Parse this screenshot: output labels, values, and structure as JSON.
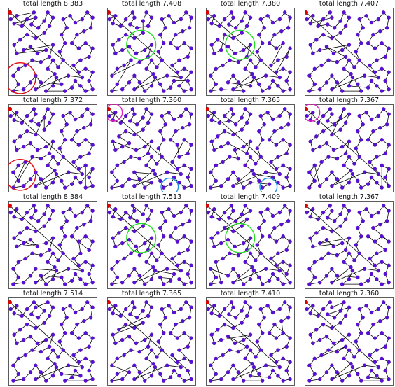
{
  "figure": {
    "colors": {
      "node": "#5a0fd6",
      "node_edge": "#3d0aa0",
      "start_node": "#e00000",
      "path": "#000000",
      "frame": "#333333",
      "circle_red": "#e01010",
      "circle_green": "#22dd22",
      "circle_magenta": "#e020c0",
      "circle_cyan": "#1e90e0"
    }
  },
  "chart_data": {
    "type": "scatter",
    "description_ids": [
      "route-plots"
    ],
    "xlim": [
      0,
      1
    ],
    "ylim": [
      0,
      1
    ],
    "grid": false,
    "panels": [
      {
        "row": 0,
        "col": 0,
        "title": "total length 8.383",
        "value": 8.383,
        "circles": [
          {
            "color": "circle_red",
            "cx": 0.12,
            "cy": 0.19,
            "r": 0.18
          }
        ]
      },
      {
        "row": 0,
        "col": 1,
        "title": "total length 7.408",
        "value": 7.408,
        "circles": [
          {
            "color": "circle_green",
            "cx": 0.38,
            "cy": 0.58,
            "r": 0.17
          }
        ]
      },
      {
        "row": 0,
        "col": 2,
        "title": "total length 7.380",
        "value": 7.38,
        "circles": [
          {
            "color": "circle_green",
            "cx": 0.38,
            "cy": 0.58,
            "r": 0.17
          }
        ]
      },
      {
        "row": 0,
        "col": 3,
        "title": "total length 7.407",
        "value": 7.407,
        "circles": []
      },
      {
        "row": 1,
        "col": 0,
        "title": "total length 7.372",
        "value": 7.372,
        "circles": [
          {
            "color": "circle_red",
            "cx": 0.12,
            "cy": 0.19,
            "r": 0.18
          }
        ]
      },
      {
        "row": 1,
        "col": 1,
        "title": "total length 7.360",
        "value": 7.36,
        "circles": [
          {
            "color": "circle_magenta",
            "cx": 0.06,
            "cy": 0.92,
            "r": 0.1
          },
          {
            "color": "circle_cyan",
            "cx": 0.71,
            "cy": 0.05,
            "r": 0.1
          }
        ]
      },
      {
        "row": 1,
        "col": 2,
        "title": "total length 7.365",
        "value": 7.365,
        "circles": [
          {
            "color": "circle_cyan",
            "cx": 0.71,
            "cy": 0.05,
            "r": 0.1
          }
        ]
      },
      {
        "row": 1,
        "col": 3,
        "title": "total length 7.367",
        "value": 7.367,
        "circles": [
          {
            "color": "circle_magenta",
            "cx": 0.06,
            "cy": 0.92,
            "r": 0.1
          }
        ]
      },
      {
        "row": 2,
        "col": 0,
        "title": "total length 8.384",
        "value": 8.384,
        "circles": []
      },
      {
        "row": 2,
        "col": 1,
        "title": "total length 7.513",
        "value": 7.513,
        "circles": [
          {
            "color": "circle_green",
            "cx": 0.38,
            "cy": 0.58,
            "r": 0.17
          }
        ]
      },
      {
        "row": 2,
        "col": 2,
        "title": "total length 7.409",
        "value": 7.409,
        "circles": [
          {
            "color": "circle_green",
            "cx": 0.38,
            "cy": 0.58,
            "r": 0.17
          }
        ]
      },
      {
        "row": 2,
        "col": 3,
        "title": "total length 7.367",
        "value": 7.367,
        "circles": []
      },
      {
        "row": 3,
        "col": 0,
        "title": "total length 7.514",
        "value": 7.514,
        "circles": []
      },
      {
        "row": 3,
        "col": 1,
        "title": "total length 7.365",
        "value": 7.365,
        "circles": []
      },
      {
        "row": 3,
        "col": 2,
        "title": "total length 7.410",
        "value": 7.41,
        "circles": []
      },
      {
        "row": 3,
        "col": 3,
        "title": "total length 7.360",
        "value": 7.36,
        "circles": []
      }
    ],
    "points": [
      [
        0.01,
        0.88
      ],
      [
        0.08,
        0.92
      ],
      [
        0.05,
        0.83
      ],
      [
        0.14,
        0.8
      ],
      [
        0.2,
        0.88
      ],
      [
        0.28,
        0.96
      ],
      [
        0.3,
        0.9
      ],
      [
        0.25,
        0.82
      ],
      [
        0.33,
        0.78
      ],
      [
        0.4,
        0.86
      ],
      [
        0.44,
        0.96
      ],
      [
        0.5,
        0.9
      ],
      [
        0.46,
        0.8
      ],
      [
        0.4,
        0.72
      ],
      [
        0.3,
        0.66
      ],
      [
        0.2,
        0.7
      ],
      [
        0.12,
        0.64
      ],
      [
        0.05,
        0.58
      ],
      [
        0.08,
        0.48
      ],
      [
        0.16,
        0.52
      ],
      [
        0.24,
        0.56
      ],
      [
        0.32,
        0.48
      ],
      [
        0.42,
        0.52
      ],
      [
        0.5,
        0.58
      ],
      [
        0.46,
        0.44
      ],
      [
        0.36,
        0.38
      ],
      [
        0.26,
        0.4
      ],
      [
        0.18,
        0.34
      ],
      [
        0.1,
        0.3
      ],
      [
        0.04,
        0.22
      ],
      [
        0.1,
        0.12
      ],
      [
        0.04,
        0.04
      ],
      [
        0.16,
        0.06
      ],
      [
        0.24,
        0.14
      ],
      [
        0.3,
        0.22
      ],
      [
        0.36,
        0.14
      ],
      [
        0.42,
        0.04
      ],
      [
        0.5,
        0.1
      ],
      [
        0.54,
        0.2
      ],
      [
        0.6,
        0.12
      ],
      [
        0.64,
        0.04
      ],
      [
        0.72,
        0.08
      ],
      [
        0.76,
        0.16
      ],
      [
        0.82,
        0.1
      ],
      [
        0.88,
        0.04
      ],
      [
        0.96,
        0.06
      ],
      [
        0.92,
        0.16
      ],
      [
        0.96,
        0.26
      ],
      [
        0.88,
        0.3
      ],
      [
        0.8,
        0.26
      ],
      [
        0.74,
        0.34
      ],
      [
        0.82,
        0.4
      ],
      [
        0.92,
        0.44
      ],
      [
        0.96,
        0.54
      ],
      [
        0.88,
        0.6
      ],
      [
        0.8,
        0.54
      ],
      [
        0.72,
        0.6
      ],
      [
        0.78,
        0.7
      ],
      [
        0.86,
        0.74
      ],
      [
        0.94,
        0.78
      ],
      [
        0.96,
        0.9
      ],
      [
        0.9,
        0.96
      ],
      [
        0.84,
        0.88
      ],
      [
        0.76,
        0.84
      ],
      [
        0.7,
        0.92
      ],
      [
        0.62,
        0.88
      ],
      [
        0.66,
        0.78
      ],
      [
        0.6,
        0.7
      ],
      [
        0.64,
        0.6
      ],
      [
        0.58,
        0.5
      ],
      [
        0.62,
        0.4
      ],
      [
        0.56,
        0.32
      ],
      [
        0.5,
        0.4
      ],
      [
        0.44,
        0.3
      ],
      [
        0.52,
        0.24
      ],
      [
        0.3,
        0.06
      ],
      [
        0.68,
        0.22
      ],
      [
        0.84,
        0.2
      ],
      [
        0.0,
        0.96
      ]
    ]
  }
}
